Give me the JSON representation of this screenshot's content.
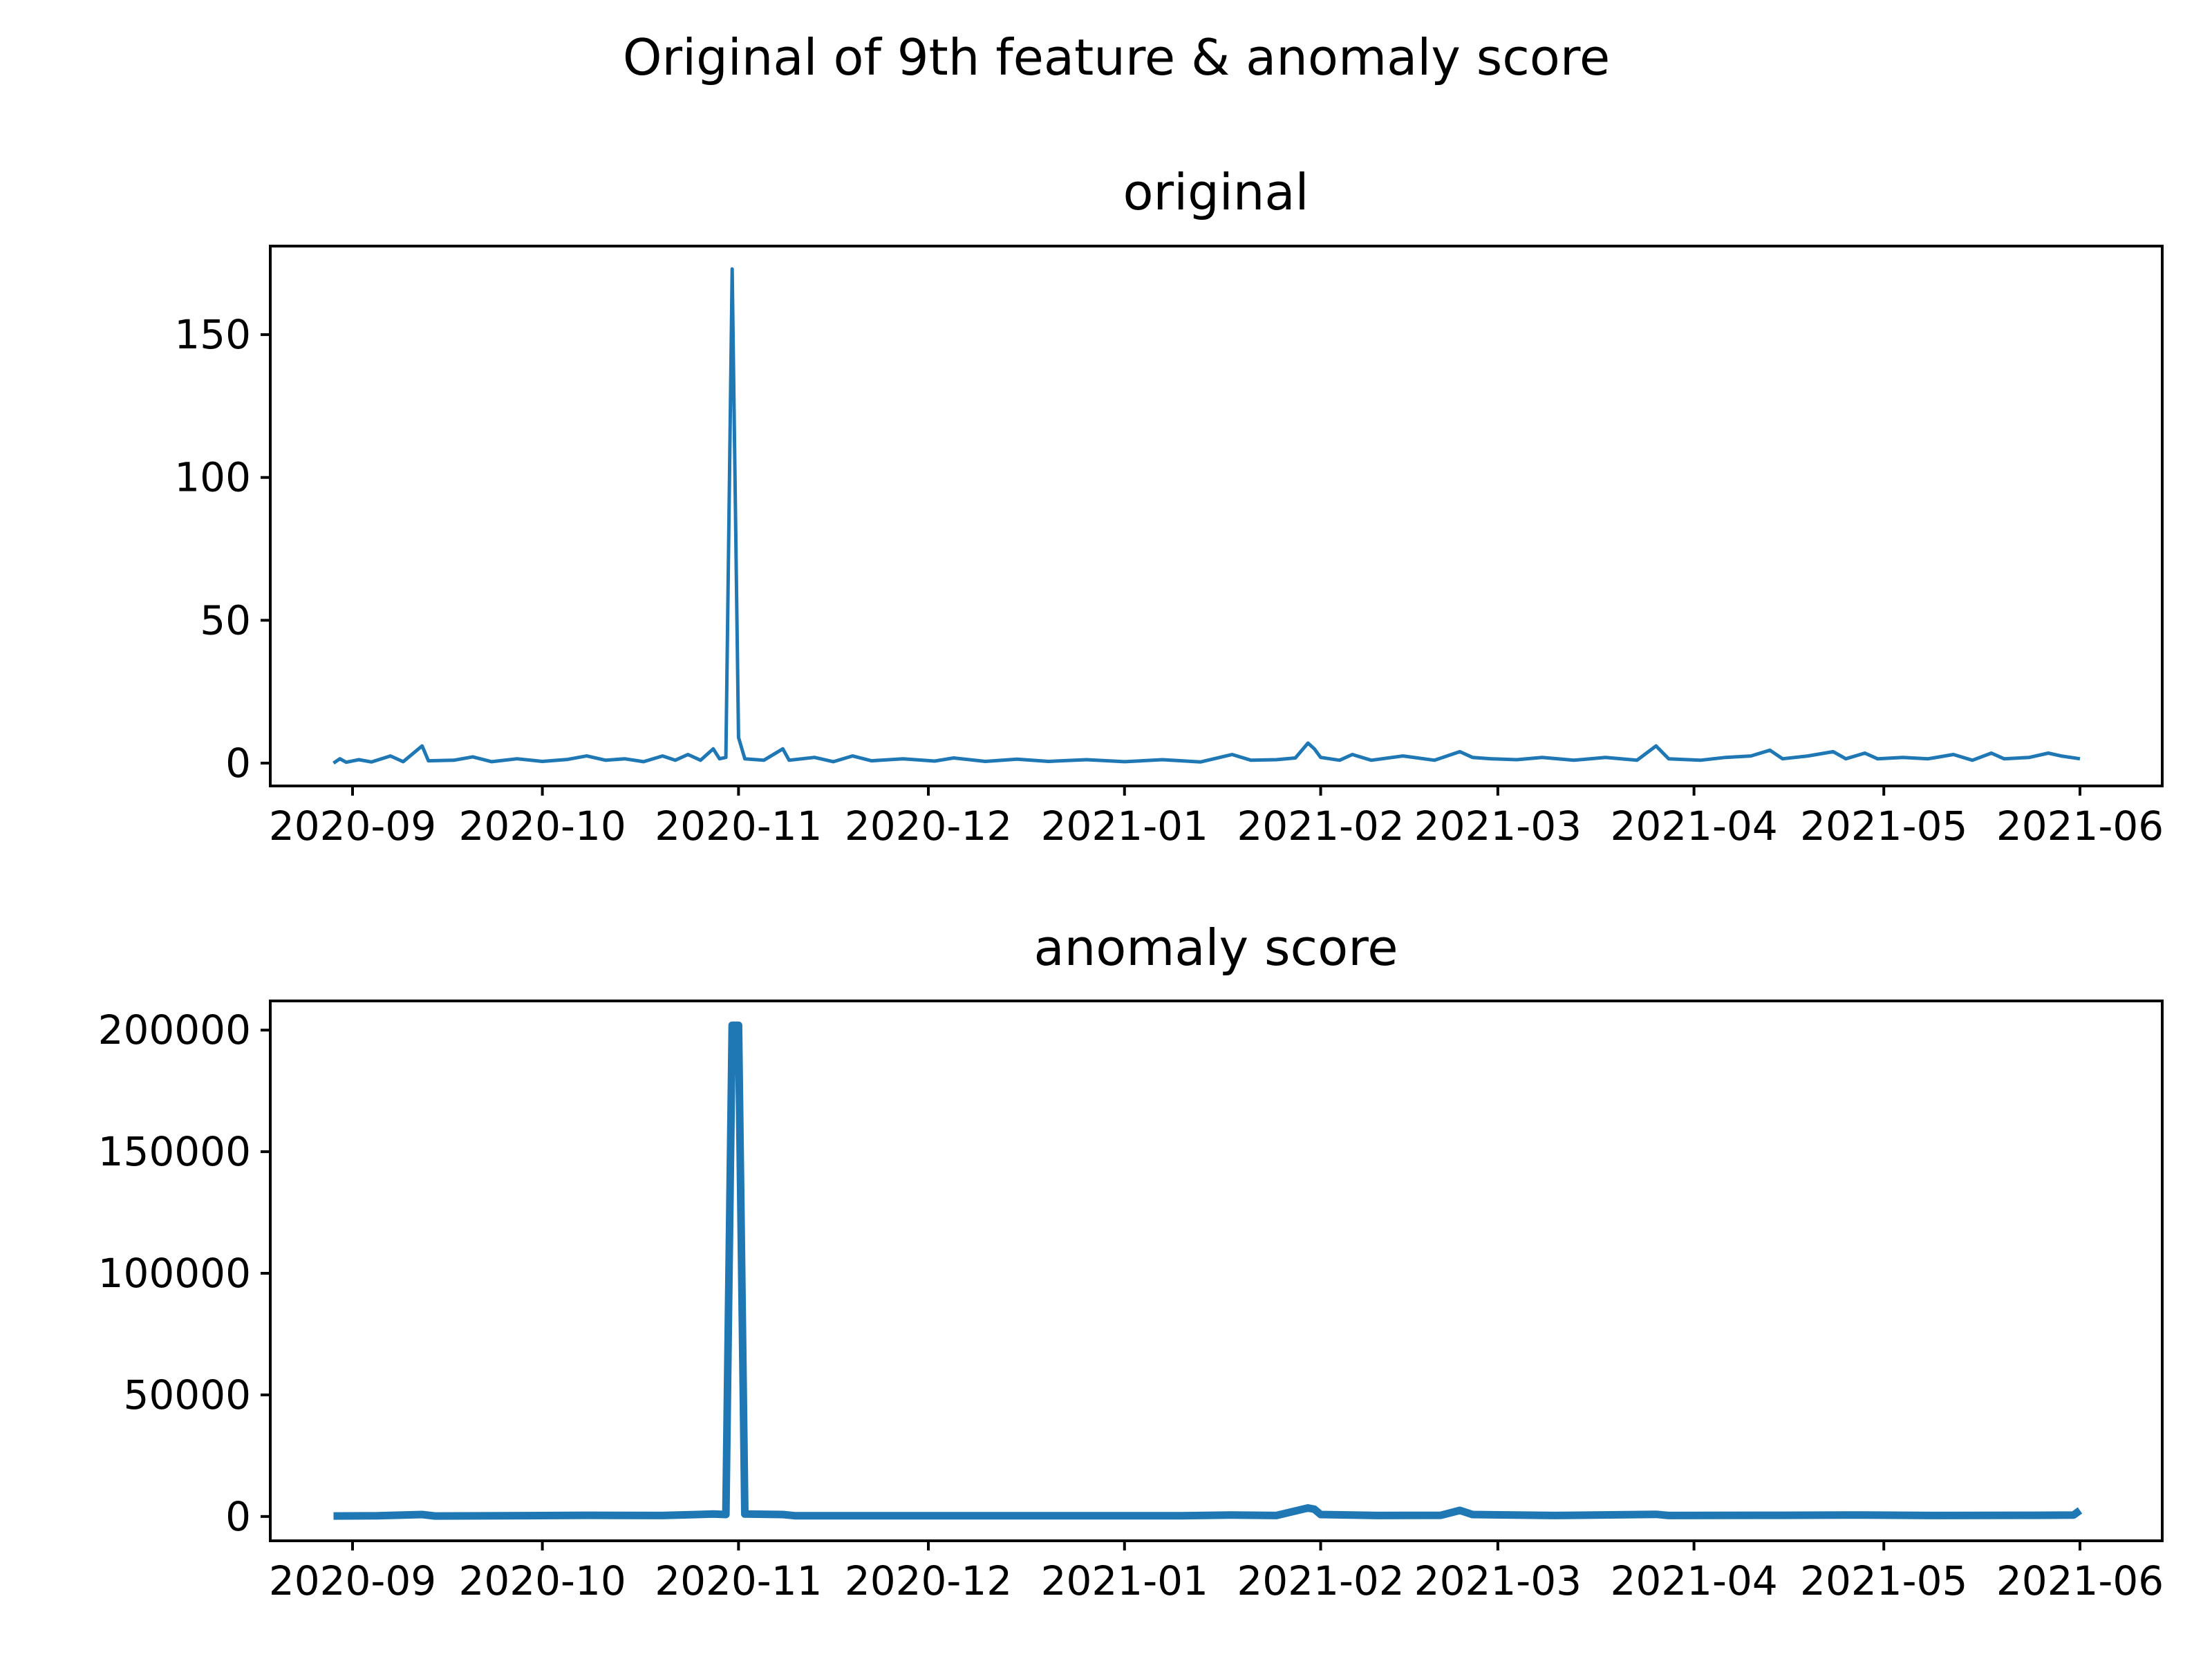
{
  "figure": {
    "suptitle": "Original of 9th feature & anomaly score",
    "line_color": "#1f77b4"
  },
  "chart_data": [
    {
      "type": "line",
      "title": "original",
      "xlabel": "",
      "ylabel": "",
      "x_axis": "date",
      "xlim": [
        "2020-08-19",
        "2021-06-14"
      ],
      "ylim": [
        -8,
        181
      ],
      "x_ticks": [
        "2020-09",
        "2020-10",
        "2020-11",
        "2020-12",
        "2021-01",
        "2021-02",
        "2021-03",
        "2021-04",
        "2021-05",
        "2021-06"
      ],
      "x_tick_dates": [
        "2020-09-01",
        "2020-10-01",
        "2020-11-01",
        "2020-12-01",
        "2021-01-01",
        "2021-02-01",
        "2021-03-01",
        "2021-04-01",
        "2021-05-01",
        "2021-06-01"
      ],
      "y_ticks": [
        0,
        50,
        100,
        150
      ],
      "grid": false,
      "legend": "none",
      "series": [
        {
          "color": "#1f77b4",
          "points": [
            [
              "2020-08-29",
              0
            ],
            [
              "2020-08-30",
              1.5
            ],
            [
              "2020-08-31",
              0.3
            ],
            [
              "2020-09-02",
              1.2
            ],
            [
              "2020-09-04",
              0.4
            ],
            [
              "2020-09-07",
              2.5
            ],
            [
              "2020-09-09",
              0.5
            ],
            [
              "2020-09-12",
              6
            ],
            [
              "2020-09-13",
              0.8
            ],
            [
              "2020-09-17",
              1.0
            ],
            [
              "2020-09-20",
              2.2
            ],
            [
              "2020-09-23",
              0.5
            ],
            [
              "2020-09-27",
              1.5
            ],
            [
              "2020-10-01",
              0.6
            ],
            [
              "2020-10-05",
              1.3
            ],
            [
              "2020-10-08",
              2.5
            ],
            [
              "2020-10-11",
              1.0
            ],
            [
              "2020-10-14",
              1.5
            ],
            [
              "2020-10-17",
              0.5
            ],
            [
              "2020-10-20",
              2.5
            ],
            [
              "2020-10-22",
              1.0
            ],
            [
              "2020-10-24",
              3
            ],
            [
              "2020-10-26",
              1.0
            ],
            [
              "2020-10-28",
              5
            ],
            [
              "2020-10-29",
              1.5
            ],
            [
              "2020-10-30",
              2
            ],
            [
              "2020-10-31",
              173
            ],
            [
              "2020-11-01",
              9
            ],
            [
              "2020-11-02",
              1.5
            ],
            [
              "2020-11-05",
              1.0
            ],
            [
              "2020-11-08",
              5
            ],
            [
              "2020-11-09",
              1.0
            ],
            [
              "2020-11-13",
              2
            ],
            [
              "2020-11-16",
              0.5
            ],
            [
              "2020-11-19",
              2.5
            ],
            [
              "2020-11-22",
              0.8
            ],
            [
              "2020-11-27",
              1.5
            ],
            [
              "2020-12-02",
              0.7
            ],
            [
              "2020-12-05",
              1.8
            ],
            [
              "2020-12-10",
              0.6
            ],
            [
              "2020-12-15",
              1.4
            ],
            [
              "2020-12-20",
              0.6
            ],
            [
              "2020-12-26",
              1.2
            ],
            [
              "2021-01-01",
              0.5
            ],
            [
              "2021-01-07",
              1.2
            ],
            [
              "2021-01-13",
              0.4
            ],
            [
              "2021-01-18",
              3
            ],
            [
              "2021-01-21",
              1.0
            ],
            [
              "2021-01-25",
              1.2
            ],
            [
              "2021-01-28",
              1.8
            ],
            [
              "2021-01-30",
              7
            ],
            [
              "2021-01-31",
              5
            ],
            [
              "2021-02-01",
              2
            ],
            [
              "2021-02-04",
              1.0
            ],
            [
              "2021-02-06",
              3
            ],
            [
              "2021-02-09",
              1.0
            ],
            [
              "2021-02-14",
              2.5
            ],
            [
              "2021-02-19",
              1.0
            ],
            [
              "2021-02-23",
              4
            ],
            [
              "2021-02-25",
              2
            ],
            [
              "2021-02-28",
              1.5
            ],
            [
              "2021-03-04",
              1.2
            ],
            [
              "2021-03-08",
              2
            ],
            [
              "2021-03-13",
              1.0
            ],
            [
              "2021-03-18",
              2
            ],
            [
              "2021-03-23",
              1.0
            ],
            [
              "2021-03-26",
              6
            ],
            [
              "2021-03-28",
              1.5
            ],
            [
              "2021-04-02",
              1.0
            ],
            [
              "2021-04-06",
              2
            ],
            [
              "2021-04-10",
              2.5
            ],
            [
              "2021-04-13",
              4.5
            ],
            [
              "2021-04-15",
              1.5
            ],
            [
              "2021-04-19",
              2.5
            ],
            [
              "2021-04-23",
              4
            ],
            [
              "2021-04-25",
              1.5
            ],
            [
              "2021-04-28",
              3.5
            ],
            [
              "2021-04-30",
              1.5
            ],
            [
              "2021-05-04",
              2
            ],
            [
              "2021-05-08",
              1.5
            ],
            [
              "2021-05-12",
              3
            ],
            [
              "2021-05-15",
              1.0
            ],
            [
              "2021-05-18",
              3.5
            ],
            [
              "2021-05-20",
              1.5
            ],
            [
              "2021-05-24",
              2
            ],
            [
              "2021-05-27",
              3.5
            ],
            [
              "2021-05-29",
              2.5
            ],
            [
              "2021-06-01",
              1.5
            ]
          ]
        }
      ]
    },
    {
      "type": "line",
      "title": "anomaly score",
      "xlabel": "",
      "ylabel": "",
      "x_axis": "date",
      "xlim": [
        "2020-08-19",
        "2021-06-14"
      ],
      "ylim": [
        -10000,
        212000
      ],
      "x_ticks": [
        "2020-09",
        "2020-10",
        "2020-11",
        "2020-12",
        "2021-01",
        "2021-02",
        "2021-03",
        "2021-04",
        "2021-05",
        "2021-06"
      ],
      "x_tick_dates": [
        "2020-09-01",
        "2020-10-01",
        "2020-11-01",
        "2020-12-01",
        "2021-01-01",
        "2021-02-01",
        "2021-03-01",
        "2021-04-01",
        "2021-05-01",
        "2021-06-01"
      ],
      "y_ticks": [
        0,
        50000,
        100000,
        150000,
        200000
      ],
      "grid": false,
      "legend": "none",
      "series": [
        {
          "color": "#1f77b4",
          "points": [
            [
              "2020-08-29",
              200
            ],
            [
              "2020-09-05",
              300
            ],
            [
              "2020-09-12",
              800
            ],
            [
              "2020-09-14",
              200
            ],
            [
              "2020-09-25",
              300
            ],
            [
              "2020-10-08",
              500
            ],
            [
              "2020-10-20",
              400
            ],
            [
              "2020-10-28",
              1000
            ],
            [
              "2020-10-30",
              800
            ],
            [
              "2020-10-31",
              202000
            ],
            [
              "2020-11-01",
              202000
            ],
            [
              "2020-11-02",
              1000
            ],
            [
              "2020-11-08",
              800
            ],
            [
              "2020-11-10",
              300
            ],
            [
              "2020-12-01",
              300
            ],
            [
              "2020-12-20",
              300
            ],
            [
              "2021-01-10",
              300
            ],
            [
              "2021-01-18",
              600
            ],
            [
              "2021-01-25",
              400
            ],
            [
              "2021-01-30",
              3500
            ],
            [
              "2021-01-31",
              3000
            ],
            [
              "2021-02-01",
              800
            ],
            [
              "2021-02-10",
              400
            ],
            [
              "2021-02-20",
              500
            ],
            [
              "2021-02-23",
              2500
            ],
            [
              "2021-02-25",
              800
            ],
            [
              "2021-03-10",
              400
            ],
            [
              "2021-03-26",
              900
            ],
            [
              "2021-03-28",
              400
            ],
            [
              "2021-04-15",
              500
            ],
            [
              "2021-04-28",
              600
            ],
            [
              "2021-05-10",
              400
            ],
            [
              "2021-05-25",
              500
            ],
            [
              "2021-05-31",
              600
            ],
            [
              "2021-06-01",
              2500
            ]
          ]
        }
      ]
    }
  ]
}
